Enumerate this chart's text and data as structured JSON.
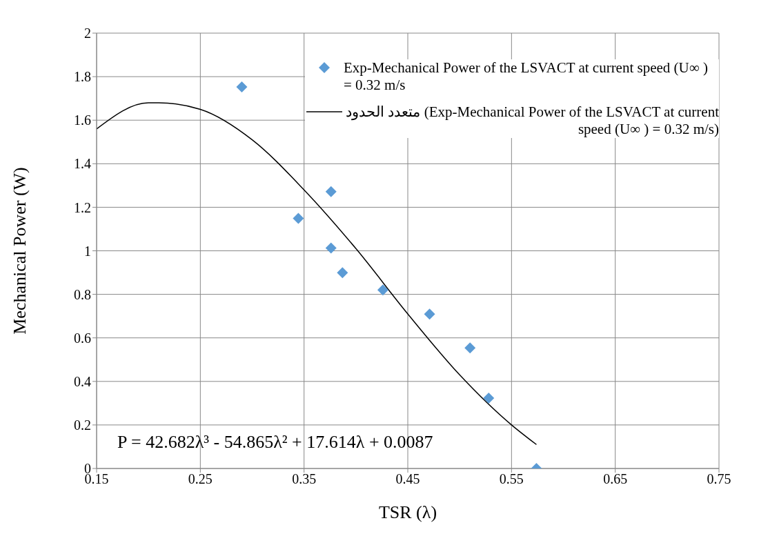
{
  "chart_data": {
    "type": "scatter",
    "xlabel": "TSR (λ)",
    "ylabel": "Mechanical Power (W)",
    "xlim": [
      0.15,
      0.75
    ],
    "xticks": [
      0.15,
      0.25,
      0.35,
      0.45,
      0.55,
      0.65,
      0.75
    ],
    "ylim": [
      0,
      2
    ],
    "yticks": [
      0,
      0.2,
      0.4,
      0.6,
      0.8,
      1,
      1.2,
      1.4,
      1.6,
      1.8,
      2
    ],
    "grid": true,
    "legend": "top right",
    "marker": "diamond",
    "series": [
      {
        "name": "Exp-Mechanical Power of the LSVACT at current speed (U∞ ) = 0.32 m/s",
        "color": "#5b9bd5",
        "x": [
          0.29,
          0.3445,
          0.376,
          0.376,
          0.387,
          0.426,
          0.471,
          0.51,
          0.528,
          0.574
        ],
        "values": [
          1.753,
          1.149,
          1.272,
          1.013,
          0.899,
          0.82,
          0.709,
          0.554,
          0.323,
          0
        ]
      },
      {
        "name": "متعدد الحدود (Exp-Mechanical Power of the LSVACT at current speed (U∞ ) = 0.32 m/s)",
        "type": "line",
        "color": "#000000",
        "marker": "none",
        "x": [
          0.15,
          0.2,
          0.21,
          0.25,
          0.3,
          0.35,
          0.4,
          0.45,
          0.5,
          0.55,
          0.574
        ],
        "values": [
          1.56,
          1.68,
          1.68,
          1.65,
          1.51,
          1.28,
          1.01,
          0.71,
          0.43,
          0.2,
          0.11
        ]
      }
    ],
    "annotations": [
      "P = 42.682λ³ - 54.865λ² + 17.614λ + 0.0087"
    ]
  }
}
